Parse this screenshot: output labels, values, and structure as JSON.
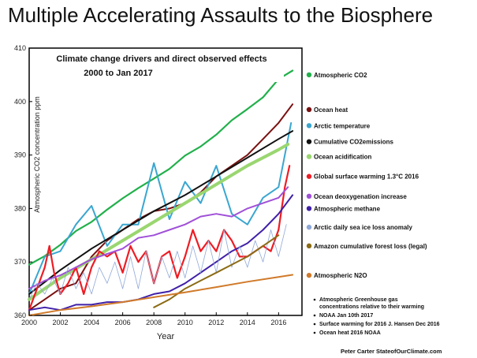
{
  "page_title": "Multiple Accelerating Assaults to the Biosphere",
  "credit": "Peter Carter StateofOurClimate.com",
  "chart_data": {
    "type": "line",
    "title": "Climate change drivers and direct observed effects",
    "subtitle": "2000 to Jan 2017",
    "xlabel": "Year",
    "ylabel": "Atmospheric CO2 concentration ppm",
    "xlim": [
      2000,
      2017.5
    ],
    "ylim": [
      360,
      410
    ],
    "x_ticks": [
      2000,
      2002,
      2004,
      2006,
      2008,
      2010,
      2012,
      2014,
      2016
    ],
    "y_ticks": [
      360,
      370,
      380,
      390,
      400,
      410
    ],
    "grid": false,
    "legend_placement": "right",
    "notes": [
      "Atmospheric Greenhouse gas",
      "concentrations relative to their warming",
      "NOAA Jan 10th 2017",
      "Surface warming for 2016  J. Hansen Dec 2016",
      "Ocean heat 2016 NOAA"
    ],
    "series": [
      {
        "name": "Atmospheric CO2",
        "color": "#22b04b",
        "width": 2.2,
        "legend_y": 405,
        "x": [
          2000,
          2001,
          2002,
          2003,
          2004,
          2005,
          2006,
          2007,
          2008,
          2009,
          2010,
          2011,
          2012,
          2013,
          2014,
          2015,
          2016,
          2016.9
        ],
        "y": [
          369.5,
          371.1,
          373.2,
          375.8,
          377.5,
          379.8,
          381.9,
          383.8,
          385.6,
          387.4,
          389.9,
          391.6,
          393.8,
          396.5,
          398.6,
          400.8,
          404.2,
          405.8
        ]
      },
      {
        "name": "Ocean heat",
        "color": "#7a1010",
        "width": 2,
        "legend_y": 398.5,
        "x": [
          2000,
          2001,
          2002,
          2003,
          2004,
          2005,
          2006,
          2007,
          2008,
          2009,
          2010,
          2011,
          2012,
          2013,
          2014,
          2015,
          2016,
          2016.9
        ],
        "y": [
          361,
          363,
          365,
          366,
          371,
          374,
          376,
          378,
          379.5,
          380,
          381,
          383,
          386,
          388,
          390,
          393,
          396,
          399.5
        ]
      },
      {
        "name": "Arctic temperature",
        "color": "#3aa6d0",
        "width": 2,
        "legend_y": 395.5,
        "x": [
          2000,
          2001,
          2002,
          2003,
          2004,
          2005,
          2006,
          2007,
          2008,
          2009,
          2010,
          2011,
          2012,
          2013,
          2014,
          2015,
          2016,
          2016.8
        ],
        "y": [
          364,
          371,
          372,
          377,
          380.5,
          373,
          377,
          377,
          388.5,
          378,
          385,
          381,
          388,
          379,
          377,
          382,
          384,
          396
        ]
      },
      {
        "name": "Cumulative CO2emissions",
        "color": "#111111",
        "width": 2,
        "legend_y": 392.5,
        "x": [
          2000,
          2002,
          2004,
          2006,
          2008,
          2010,
          2012,
          2014,
          2016,
          2016.9
        ],
        "y": [
          364,
          368.5,
          372.5,
          376,
          379.5,
          382.5,
          386,
          389.5,
          393,
          394.5
        ]
      },
      {
        "name": "Ocean acidification",
        "color": "#9ad670",
        "width": 4,
        "legend_y": 389.7,
        "x": [
          2000,
          2002,
          2004,
          2006,
          2008,
          2010,
          2012,
          2014,
          2016,
          2016.6
        ],
        "y": [
          363,
          367,
          370.5,
          374,
          377.5,
          381,
          384.5,
          388,
          391,
          392
        ]
      },
      {
        "name": "Global surface warming 1.3°C 2016",
        "color": "#ee1c24",
        "width": 2.2,
        "legend_y": 386,
        "x": [
          2000,
          2000.5,
          2001,
          2001.3,
          2001.6,
          2002,
          2002.5,
          2003,
          2003.5,
          2004,
          2004.5,
          2005,
          2005.5,
          2006,
          2006.5,
          2007,
          2007.5,
          2008,
          2008.5,
          2009,
          2009.5,
          2010,
          2010.5,
          2011,
          2011.5,
          2012,
          2012.5,
          2013,
          2013.5,
          2014,
          2014.5,
          2015,
          2015.5,
          2016,
          2016.4,
          2016.7
        ],
        "y": [
          361,
          365,
          369,
          373,
          368,
          364,
          366,
          369,
          364,
          369,
          372,
          371,
          372,
          368,
          373,
          370,
          372,
          366,
          371,
          372,
          367,
          371,
          376,
          372,
          374,
          372,
          376,
          374,
          371,
          371,
          372,
          373,
          372,
          376,
          384,
          388
        ]
      },
      {
        "name": "Ocean deoxygenation increase",
        "color": "#a050d8",
        "width": 2,
        "legend_y": 382.3,
        "x": [
          2000,
          2001,
          2002,
          2003,
          2004,
          2005,
          2006,
          2007,
          2008,
          2009,
          2010,
          2011,
          2012,
          2013,
          2014,
          2015,
          2016,
          2016.6
        ],
        "y": [
          365,
          366.5,
          367.5,
          369,
          370.5,
          371.5,
          372.5,
          374.5,
          375,
          376,
          377,
          378.5,
          379,
          378.5,
          380,
          381,
          382,
          384
        ]
      },
      {
        "name": "Atmospheric methane",
        "color": "#4020a8",
        "width": 2,
        "legend_y": 380,
        "x": [
          2000,
          2001,
          2002,
          2003,
          2004,
          2005,
          2006,
          2007,
          2008,
          2009,
          2010,
          2011,
          2012,
          2013,
          2014,
          2015,
          2016,
          2016.9
        ],
        "y": [
          361,
          361.5,
          361,
          362,
          362,
          362.5,
          362.5,
          363,
          364,
          364.5,
          366,
          368,
          370,
          372,
          373.5,
          376,
          379,
          382.5
        ]
      },
      {
        "name": "Arctic daily sea ice loss anomaly",
        "color": "#8fa8d8",
        "width": 0.8,
        "legend_y": 376.5,
        "x": [
          2000,
          2000.5,
          2001,
          2001.5,
          2002,
          2002.5,
          2003,
          2003.5,
          2004,
          2004.5,
          2005,
          2005.5,
          2006,
          2006.5,
          2007,
          2007.5,
          2008,
          2008.5,
          2009,
          2009.5,
          2010,
          2010.5,
          2011,
          2011.5,
          2012,
          2012.5,
          2013,
          2013.5,
          2014,
          2014.5,
          2015,
          2015.5,
          2016,
          2016.5
        ],
        "y": [
          363,
          366,
          364,
          367,
          364,
          369,
          365,
          368,
          364,
          369,
          366,
          370,
          365,
          371,
          365,
          372,
          366,
          371,
          367,
          372,
          367,
          373,
          368,
          374,
          368,
          376,
          369,
          373,
          369,
          374,
          370,
          376,
          371,
          377
        ]
      },
      {
        "name": "Amazon cumulative forest loss (legal)",
        "color": "#8b6b14",
        "width": 2,
        "legend_y": 373,
        "x": [
          2008,
          2009,
          2010,
          2011,
          2012,
          2013,
          2014,
          2015,
          2016
        ],
        "y": [
          361.5,
          363,
          365,
          366.5,
          368,
          369.5,
          371,
          373,
          375
        ]
      },
      {
        "name": "Atmospheric N2O",
        "color": "#d07a2a",
        "width": 2,
        "legend_y": 367.5,
        "x": [
          2000,
          2002,
          2004,
          2006,
          2008,
          2010,
          2012,
          2014,
          2016,
          2016.9
        ],
        "y": [
          360,
          361,
          361.7,
          362.5,
          363.4,
          364.3,
          365.3,
          366.3,
          367.2,
          367.6
        ]
      }
    ]
  }
}
